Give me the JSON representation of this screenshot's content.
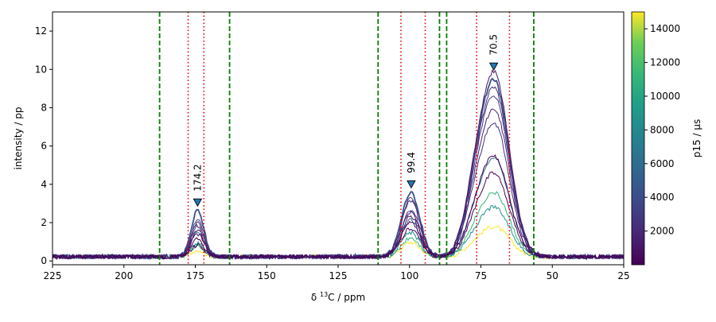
{
  "chart_data": {
    "type": "line",
    "xlabel_prefix": "δ ",
    "xlabel_sup": "13",
    "xlabel_suffix": "C / ppm",
    "ylabel": "intensity / pp",
    "xlim": [
      225,
      25
    ],
    "ylim": [
      -0.2,
      13
    ],
    "x_ticks": [
      225,
      200,
      175,
      150,
      125,
      100,
      75,
      50,
      25
    ],
    "y_ticks": [
      0,
      2,
      4,
      6,
      8,
      10,
      12
    ],
    "grid": false,
    "integration_bounds_green": [
      187.5,
      163,
      111,
      89.5,
      87,
      56.5
    ],
    "integration_bounds_red": [
      177.5,
      172,
      103,
      94.5,
      76.5,
      65
    ],
    "peaks": [
      {
        "label": "174.2",
        "x": 174.2,
        "marker_y": 3.05
      },
      {
        "label": "99.4",
        "x": 99.4,
        "marker_y": 4.0
      },
      {
        "label": "70.5",
        "x": 70.5,
        "marker_y": 10.15
      }
    ],
    "colorbar": {
      "label": "p15 / µs",
      "range": [
        0,
        15000
      ],
      "ticks": [
        2000,
        4000,
        6000,
        8000,
        10000,
        12000,
        14000
      ],
      "colormap": "viridis"
    },
    "series": [
      {
        "p15": 14500,
        "color": "#fde725",
        "peak_heights": [
          0.35,
          0.75,
          1.55
        ]
      },
      {
        "p15": 10500,
        "color": "#35b779",
        "peak_heights": [
          0.6,
          1.0,
          3.3
        ]
      },
      {
        "p15": 8000,
        "color": "#21918c",
        "peak_heights": [
          0.7,
          1.25,
          2.55
        ]
      },
      {
        "p15": 6000,
        "color": "#2c728e",
        "peak_heights": [
          1.3,
          1.9,
          5.1
        ]
      },
      {
        "p15": 4000,
        "color": "#3b528b",
        "peak_heights": [
          2.4,
          3.35,
          9.1
        ]
      },
      {
        "p15": 3500,
        "color": "#443a83",
        "peak_heights": [
          2.0,
          3.1,
          8.3
        ]
      },
      {
        "p15": 3000,
        "color": "#472d7b",
        "peak_heights": [
          1.8,
          2.9,
          8.7
        ]
      },
      {
        "p15": 2500,
        "color": "#46327e",
        "peak_heights": [
          1.6,
          2.5,
          6.9
        ]
      },
      {
        "p15": 2000,
        "color": "#482173",
        "peak_heights": [
          1.4,
          2.3,
          7.6
        ]
      },
      {
        "p15": 1500,
        "color": "#471365",
        "peak_heights": [
          1.2,
          2.1,
          9.5
        ]
      },
      {
        "p15": 1000,
        "color": "#440154",
        "peak_heights": [
          0.9,
          1.8,
          5.2
        ]
      },
      {
        "p15": 500,
        "color": "#450559",
        "peak_heights": [
          0.6,
          1.5,
          4.3
        ]
      }
    ]
  }
}
